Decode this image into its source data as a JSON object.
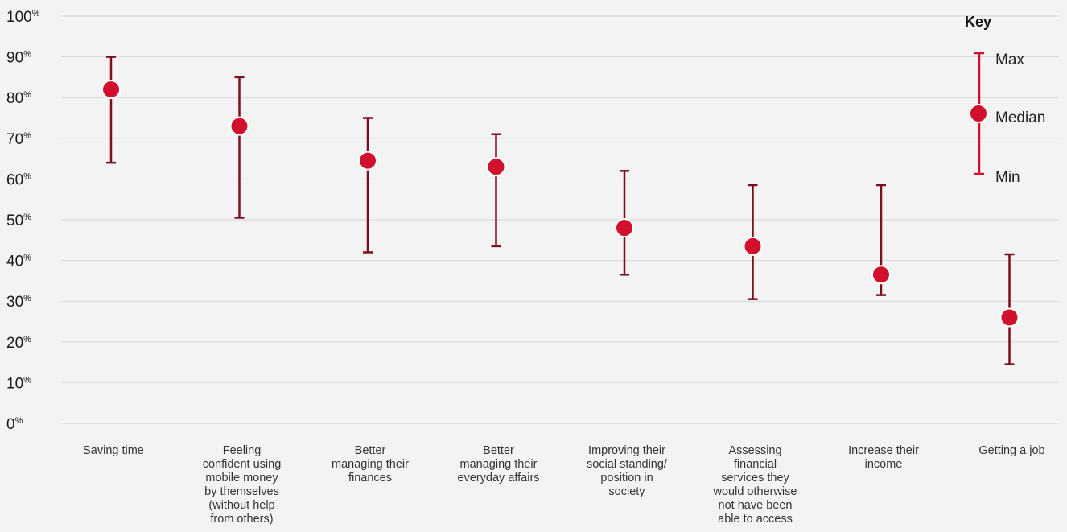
{
  "chart_data": {
    "type": "errorbar",
    "ylim": [
      0,
      100
    ],
    "yticks": [
      0,
      10,
      20,
      30,
      40,
      50,
      60,
      70,
      80,
      90,
      100
    ],
    "ytick_suffix": "%",
    "grid": true,
    "legend_position": "top-right",
    "colors": {
      "median": "#d0102c",
      "range": "#7a0f1e",
      "grid": "#d6d6d6"
    },
    "categories": [
      [
        "Saving time"
      ],
      [
        "Feeling",
        "confident using",
        "mobile money",
        "by themselves",
        "(without help",
        "from others)"
      ],
      [
        "Better",
        "managing their",
        "finances"
      ],
      [
        "Better",
        "managing their",
        "everyday affairs"
      ],
      [
        "Improving their",
        "social standing/",
        "position in",
        "society"
      ],
      [
        "Assessing",
        "financial",
        "services they",
        "would otherwise",
        "not have been",
        "able to access"
      ],
      [
        "Increase their",
        "income"
      ],
      [
        "Getting a job"
      ]
    ],
    "series": [
      {
        "name": "Max",
        "values": [
          90,
          85,
          75,
          71,
          62,
          58.5,
          58.5,
          41.5
        ]
      },
      {
        "name": "Median",
        "values": [
          82,
          73,
          64.5,
          63,
          48,
          43.5,
          36.5,
          26
        ]
      },
      {
        "name": "Min",
        "values": [
          64,
          50.5,
          42,
          43.5,
          36.5,
          30.5,
          31.5,
          14.5
        ]
      }
    ]
  },
  "key": {
    "title": "Key",
    "max_label": "Max",
    "median_label": "Median",
    "min_label": "Min"
  }
}
